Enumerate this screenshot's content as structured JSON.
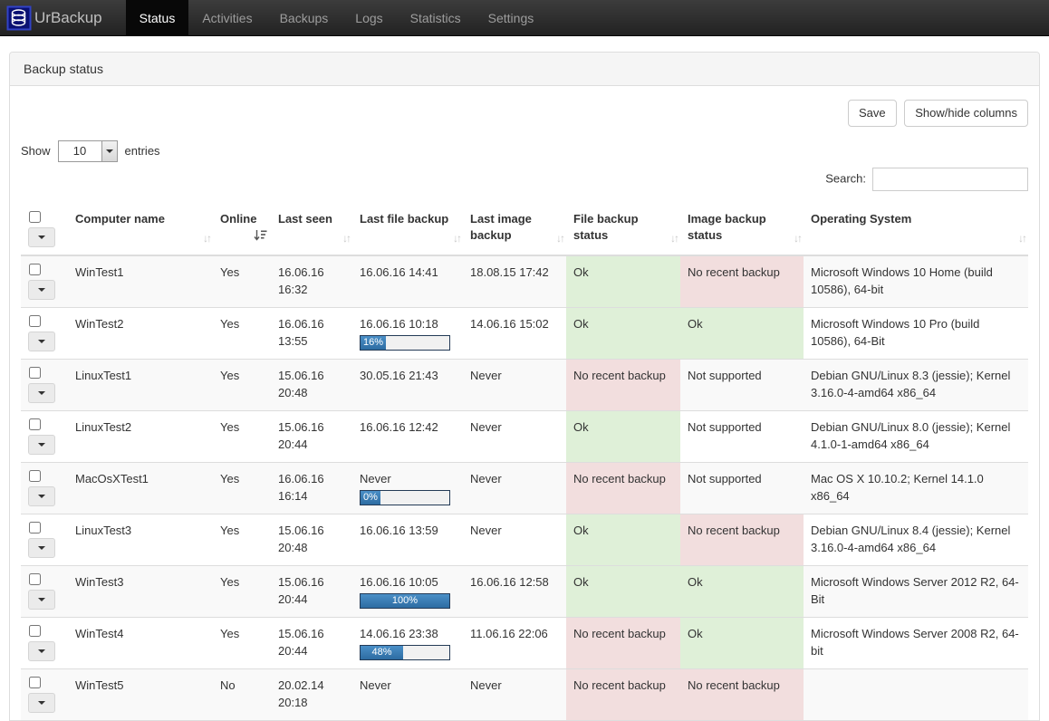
{
  "navbar": {
    "brand": "UrBackup",
    "items": [
      {
        "label": "Status",
        "active": true
      },
      {
        "label": "Activities",
        "active": false
      },
      {
        "label": "Backups",
        "active": false
      },
      {
        "label": "Logs",
        "active": false
      },
      {
        "label": "Statistics",
        "active": false
      },
      {
        "label": "Settings",
        "active": false
      }
    ]
  },
  "panel": {
    "title": "Backup status"
  },
  "toolbar": {
    "save_label": "Save",
    "show_hide_columns_label": "Show/hide columns"
  },
  "length_control": {
    "prefix": "Show",
    "selected": "10",
    "suffix": "entries"
  },
  "search": {
    "label": "Search:",
    "value": ""
  },
  "icons": {
    "sort_inactive": "↓↑",
    "sort_active_desc": "arrow-down-with-bars",
    "caret_down": "triangle-down",
    "logo": "database-stack"
  },
  "colors": {
    "ok_bg": "#dff0d8",
    "bad_bg": "#f2dede",
    "progress_blue": "#2d6ca2",
    "navbar_bg": "#222222",
    "active_item_bg": "#080808"
  },
  "table": {
    "columns": [
      {
        "id": "select",
        "label": "",
        "sort": null
      },
      {
        "id": "computer_name",
        "label": "Computer name",
        "sort": "both"
      },
      {
        "id": "online",
        "label": "Online",
        "sort": "desc"
      },
      {
        "id": "last_seen",
        "label": "Last seen",
        "sort": "both"
      },
      {
        "id": "last_file_backup",
        "label": "Last file backup",
        "sort": "both"
      },
      {
        "id": "last_image_backup",
        "label": "Last image backup",
        "sort": "both"
      },
      {
        "id": "file_backup_status",
        "label": "File backup status",
        "sort": "both"
      },
      {
        "id": "image_backup_status",
        "label": "Image backup status",
        "sort": "both"
      },
      {
        "id": "operating_system",
        "label": "Operating System",
        "sort": "both"
      }
    ],
    "rows": [
      {
        "computer_name": "WinTest1",
        "online": "Yes",
        "last_seen": "16.06.16 16:32",
        "last_file_backup": "16.06.16 14:41",
        "file_progress": null,
        "last_image_backup": "18.08.15 17:42",
        "file_backup_status": {
          "text": "Ok",
          "type": "ok"
        },
        "image_backup_status": {
          "text": "No recent backup",
          "type": "bad"
        },
        "operating_system": "Microsoft Windows 10 Home (build 10586), 64-bit"
      },
      {
        "computer_name": "WinTest2",
        "online": "Yes",
        "last_seen": "16.06.16 13:55",
        "last_file_backup": "16.06.16 10:18",
        "file_progress": {
          "percent": 16,
          "label": "16%"
        },
        "last_image_backup": "14.06.16 15:02",
        "file_backup_status": {
          "text": "Ok",
          "type": "ok"
        },
        "image_backup_status": {
          "text": "Ok",
          "type": "ok"
        },
        "operating_system": "Microsoft Windows 10 Pro (build 10586), 64-Bit"
      },
      {
        "computer_name": "LinuxTest1",
        "online": "Yes",
        "last_seen": "15.06.16 20:48",
        "last_file_backup": "30.05.16 21:43",
        "file_progress": null,
        "last_image_backup": "Never",
        "file_backup_status": {
          "text": "No recent backup",
          "type": "bad"
        },
        "image_backup_status": {
          "text": "Not supported",
          "type": "plain"
        },
        "operating_system": "Debian GNU/Linux 8.3 (jessie); Kernel 3.16.0-4-amd64 x86_64"
      },
      {
        "computer_name": "LinuxTest2",
        "online": "Yes",
        "last_seen": "15.06.16 20:44",
        "last_file_backup": "16.06.16 12:42",
        "file_progress": null,
        "last_image_backup": "Never",
        "file_backup_status": {
          "text": "Ok",
          "type": "ok"
        },
        "image_backup_status": {
          "text": "Not supported",
          "type": "plain"
        },
        "operating_system": "Debian GNU/Linux 8.0 (jessie); Kernel 4.1.0-1-amd64 x86_64"
      },
      {
        "computer_name": "MacOsXTest1",
        "online": "Yes",
        "last_seen": "16.06.16 16:14",
        "last_file_backup": "Never",
        "file_progress": {
          "percent": 0,
          "label": "0%"
        },
        "last_image_backup": "Never",
        "file_backup_status": {
          "text": "No recent backup",
          "type": "bad"
        },
        "image_backup_status": {
          "text": "Not supported",
          "type": "plain"
        },
        "operating_system": "Mac OS X 10.10.2; Kernel 14.1.0 x86_64"
      },
      {
        "computer_name": "LinuxTest3",
        "online": "Yes",
        "last_seen": "15.06.16 20:48",
        "last_file_backup": "16.06.16 13:59",
        "file_progress": null,
        "last_image_backup": "Never",
        "file_backup_status": {
          "text": "Ok",
          "type": "ok"
        },
        "image_backup_status": {
          "text": "No recent backup",
          "type": "bad"
        },
        "operating_system": "Debian GNU/Linux 8.4 (jessie); Kernel 3.16.0-4-amd64 x86_64"
      },
      {
        "computer_name": "WinTest3",
        "online": "Yes",
        "last_seen": "15.06.16 20:44",
        "last_file_backup": "16.06.16 10:05",
        "file_progress": {
          "percent": 100,
          "label": "100%"
        },
        "last_image_backup": "16.06.16 12:58",
        "file_backup_status": {
          "text": "Ok",
          "type": "ok"
        },
        "image_backup_status": {
          "text": "Ok",
          "type": "ok"
        },
        "operating_system": "Microsoft Windows Server 2012 R2, 64-Bit"
      },
      {
        "computer_name": "WinTest4",
        "online": "Yes",
        "last_seen": "15.06.16 20:44",
        "last_file_backup": "14.06.16 23:38",
        "file_progress": {
          "percent": 48,
          "label": "48%"
        },
        "last_image_backup": "11.06.16 22:06",
        "file_backup_status": {
          "text": "No recent backup",
          "type": "bad"
        },
        "image_backup_status": {
          "text": "Ok",
          "type": "ok"
        },
        "operating_system": "Microsoft Windows Server 2008 R2, 64-bit"
      },
      {
        "computer_name": "WinTest5",
        "online": "No",
        "last_seen": "20.02.14 20:18",
        "last_file_backup": "Never",
        "file_progress": null,
        "last_image_backup": "Never",
        "file_backup_status": {
          "text": "No recent backup",
          "type": "bad"
        },
        "image_backup_status": {
          "text": "No recent backup",
          "type": "bad"
        },
        "operating_system": ""
      }
    ]
  }
}
